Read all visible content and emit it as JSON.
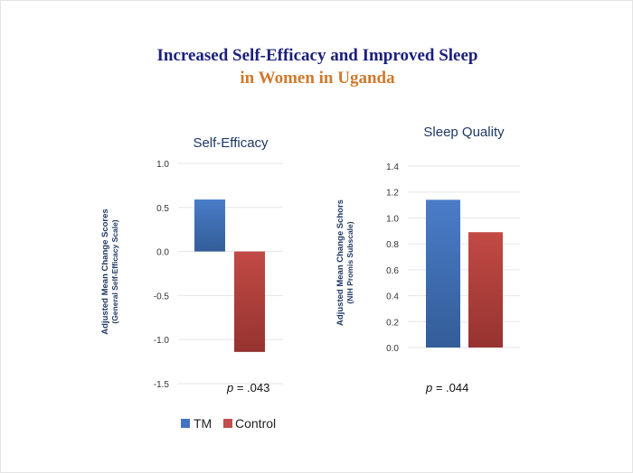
{
  "title_line1": "Increased Self-Efficacy and Improved Sleep",
  "title_line2": "in Women in Uganda",
  "colors": {
    "title1": "#1c1f7a",
    "title2": "#d07a2e",
    "tm": "#4472c4",
    "control": "#c0504d",
    "axis_text": "#1f3864"
  },
  "legend": [
    {
      "label": "TM",
      "color": "#4472c4"
    },
    {
      "label": "Control",
      "color": "#c0504d"
    }
  ],
  "chart_data": [
    {
      "type": "bar",
      "title": "Self-Efficacy",
      "ylabel": "Adjusted Mean Change Scores",
      "ylabel_sub": "(General Self-Efficacy Scale)",
      "ylim": [
        -1.5,
        1.0
      ],
      "ticks": [
        "1.0",
        "0.5",
        "0.0",
        "-0.5",
        "-1.0",
        "-1.5"
      ],
      "grid": true,
      "series": [
        {
          "name": "TM",
          "values": [
            0.59
          ]
        },
        {
          "name": "Control",
          "values": [
            -1.14
          ]
        }
      ],
      "annotation": {
        "p": "p",
        "rest": " = .043"
      }
    },
    {
      "type": "bar",
      "title": "Sleep Quality",
      "ylabel": "Adjusted Mean  Change Schors",
      "ylabel_sub": "(NIH Promis Subscale)",
      "ylim": [
        0.0,
        1.4
      ],
      "ticks": [
        "1.4",
        "1.2",
        "1.0",
        "0.8",
        "0.6",
        "0.4",
        "0.2",
        "0.0"
      ],
      "grid": true,
      "series": [
        {
          "name": "TM",
          "values": [
            1.14
          ]
        },
        {
          "name": "Control",
          "values": [
            0.89
          ]
        }
      ],
      "annotation": {
        "p": "p",
        "rest": " = .044"
      }
    }
  ]
}
